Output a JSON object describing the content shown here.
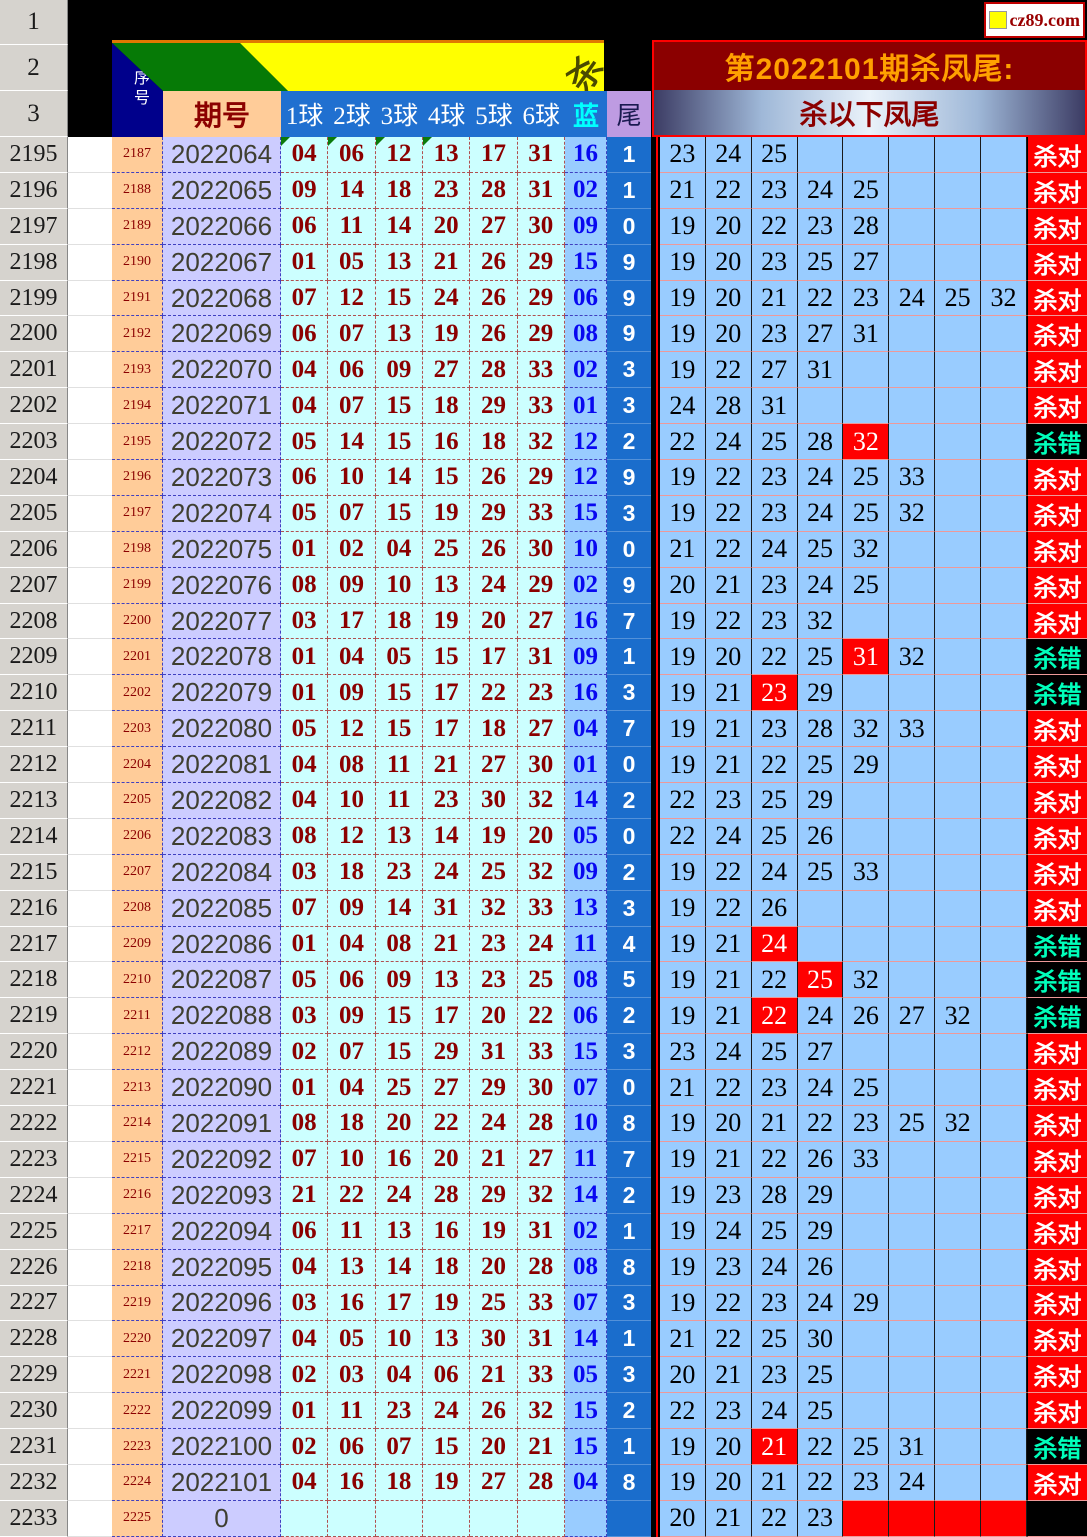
{
  "logo": {
    "text": "cz89.com"
  },
  "gutter_rows": [
    "1",
    "2",
    "3"
  ],
  "headers": {
    "serial": "序号",
    "period": "期号",
    "balls": [
      "1球",
      "2球",
      "3球",
      "4球",
      "5球",
      "6球"
    ],
    "blue": "蓝",
    "tail": "尾",
    "banner_glyph": "杀",
    "right_title": "第2022101期杀凤尾:",
    "right_subtitle": "杀以下凤尾"
  },
  "labels": {
    "correct": "杀对",
    "wrong": "杀错"
  },
  "colors": {
    "kill_highlight": "#FF0000",
    "correct_bg": "#FF0000",
    "wrong_bg": "#000000",
    "wrong_text": "#00FFBB",
    "panel_title_bg": "#8B0000",
    "panel_title_text": "#FFA000"
  },
  "rows": [
    {
      "gutter": "2195",
      "serial": "2187",
      "period": "2022064",
      "balls": [
        "04",
        "06",
        "12",
        "13",
        "17",
        "31"
      ],
      "blue": "16",
      "tail": "1",
      "kills": [
        "23",
        "24",
        "25"
      ],
      "red_kills": [],
      "result": "correct",
      "green_corners": [
        0,
        1,
        2,
        3
      ]
    },
    {
      "gutter": "2196",
      "serial": "2188",
      "period": "2022065",
      "balls": [
        "09",
        "14",
        "18",
        "23",
        "28",
        "31"
      ],
      "blue": "02",
      "tail": "1",
      "kills": [
        "21",
        "22",
        "23",
        "24",
        "25"
      ],
      "red_kills": [],
      "result": "correct"
    },
    {
      "gutter": "2197",
      "serial": "2189",
      "period": "2022066",
      "balls": [
        "06",
        "11",
        "14",
        "20",
        "27",
        "30"
      ],
      "blue": "09",
      "tail": "0",
      "kills": [
        "19",
        "20",
        "22",
        "23",
        "28"
      ],
      "red_kills": [],
      "result": "correct"
    },
    {
      "gutter": "2198",
      "serial": "2190",
      "period": "2022067",
      "balls": [
        "01",
        "05",
        "13",
        "21",
        "26",
        "29"
      ],
      "blue": "15",
      "tail": "9",
      "kills": [
        "19",
        "20",
        "23",
        "25",
        "27"
      ],
      "red_kills": [],
      "result": "correct"
    },
    {
      "gutter": "2199",
      "serial": "2191",
      "period": "2022068",
      "balls": [
        "07",
        "12",
        "15",
        "24",
        "26",
        "29"
      ],
      "blue": "06",
      "tail": "9",
      "kills": [
        "19",
        "20",
        "21",
        "22",
        "23",
        "24",
        "25",
        "32"
      ],
      "red_kills": [],
      "result": "correct"
    },
    {
      "gutter": "2200",
      "serial": "2192",
      "period": "2022069",
      "balls": [
        "06",
        "07",
        "13",
        "19",
        "26",
        "29"
      ],
      "blue": "08",
      "tail": "9",
      "kills": [
        "19",
        "20",
        "23",
        "27",
        "31"
      ],
      "red_kills": [],
      "result": "correct"
    },
    {
      "gutter": "2201",
      "serial": "2193",
      "period": "2022070",
      "balls": [
        "04",
        "06",
        "09",
        "27",
        "28",
        "33"
      ],
      "blue": "02",
      "tail": "3",
      "kills": [
        "19",
        "22",
        "27",
        "31"
      ],
      "red_kills": [],
      "result": "correct"
    },
    {
      "gutter": "2202",
      "serial": "2194",
      "period": "2022071",
      "balls": [
        "04",
        "07",
        "15",
        "18",
        "29",
        "33"
      ],
      "blue": "01",
      "tail": "3",
      "kills": [
        "24",
        "28",
        "31"
      ],
      "red_kills": [],
      "result": "correct"
    },
    {
      "gutter": "2203",
      "serial": "2195",
      "period": "2022072",
      "balls": [
        "05",
        "14",
        "15",
        "16",
        "18",
        "32"
      ],
      "blue": "12",
      "tail": "2",
      "kills": [
        "22",
        "24",
        "25",
        "28",
        "32"
      ],
      "red_kills": [
        4
      ],
      "result": "wrong"
    },
    {
      "gutter": "2204",
      "serial": "2196",
      "period": "2022073",
      "balls": [
        "06",
        "10",
        "14",
        "15",
        "26",
        "29"
      ],
      "blue": "12",
      "tail": "9",
      "kills": [
        "19",
        "22",
        "23",
        "24",
        "25",
        "33"
      ],
      "red_kills": [],
      "result": "correct"
    },
    {
      "gutter": "2205",
      "serial": "2197",
      "period": "2022074",
      "balls": [
        "05",
        "07",
        "15",
        "19",
        "29",
        "33"
      ],
      "blue": "15",
      "tail": "3",
      "kills": [
        "19",
        "22",
        "23",
        "24",
        "25",
        "32"
      ],
      "red_kills": [],
      "result": "correct"
    },
    {
      "gutter": "2206",
      "serial": "2198",
      "period": "2022075",
      "balls": [
        "01",
        "02",
        "04",
        "25",
        "26",
        "30"
      ],
      "blue": "10",
      "tail": "0",
      "kills": [
        "21",
        "22",
        "24",
        "25",
        "32"
      ],
      "red_kills": [],
      "result": "correct"
    },
    {
      "gutter": "2207",
      "serial": "2199",
      "period": "2022076",
      "balls": [
        "08",
        "09",
        "10",
        "13",
        "24",
        "29"
      ],
      "blue": "02",
      "tail": "9",
      "kills": [
        "20",
        "21",
        "23",
        "24",
        "25"
      ],
      "red_kills": [],
      "result": "correct"
    },
    {
      "gutter": "2208",
      "serial": "2200",
      "period": "2022077",
      "balls": [
        "03",
        "17",
        "18",
        "19",
        "20",
        "27"
      ],
      "blue": "16",
      "tail": "7",
      "kills": [
        "19",
        "22",
        "23",
        "32"
      ],
      "red_kills": [],
      "result": "correct"
    },
    {
      "gutter": "2209",
      "serial": "2201",
      "period": "2022078",
      "balls": [
        "01",
        "04",
        "05",
        "15",
        "17",
        "31"
      ],
      "blue": "09",
      "tail": "1",
      "kills": [
        "19",
        "20",
        "22",
        "25",
        "31",
        "32"
      ],
      "red_kills": [
        4
      ],
      "result": "wrong"
    },
    {
      "gutter": "2210",
      "serial": "2202",
      "period": "2022079",
      "balls": [
        "01",
        "09",
        "15",
        "17",
        "22",
        "23"
      ],
      "blue": "16",
      "tail": "3",
      "kills": [
        "19",
        "21",
        "23",
        "29"
      ],
      "red_kills": [
        2
      ],
      "result": "wrong"
    },
    {
      "gutter": "2211",
      "serial": "2203",
      "period": "2022080",
      "balls": [
        "05",
        "12",
        "15",
        "17",
        "18",
        "27"
      ],
      "blue": "04",
      "tail": "7",
      "kills": [
        "19",
        "21",
        "23",
        "28",
        "32",
        "33"
      ],
      "red_kills": [],
      "result": "correct"
    },
    {
      "gutter": "2212",
      "serial": "2204",
      "period": "2022081",
      "balls": [
        "04",
        "08",
        "11",
        "21",
        "27",
        "30"
      ],
      "blue": "01",
      "tail": "0",
      "kills": [
        "19",
        "21",
        "22",
        "25",
        "29"
      ],
      "red_kills": [],
      "result": "correct"
    },
    {
      "gutter": "2213",
      "serial": "2205",
      "period": "2022082",
      "balls": [
        "04",
        "10",
        "11",
        "23",
        "30",
        "32"
      ],
      "blue": "14",
      "tail": "2",
      "kills": [
        "22",
        "23",
        "25",
        "29"
      ],
      "red_kills": [],
      "result": "correct"
    },
    {
      "gutter": "2214",
      "serial": "2206",
      "period": "2022083",
      "balls": [
        "08",
        "12",
        "13",
        "14",
        "19",
        "20"
      ],
      "blue": "05",
      "tail": "0",
      "kills": [
        "22",
        "24",
        "25",
        "26"
      ],
      "red_kills": [],
      "result": "correct"
    },
    {
      "gutter": "2215",
      "serial": "2207",
      "period": "2022084",
      "balls": [
        "03",
        "18",
        "23",
        "24",
        "25",
        "32"
      ],
      "blue": "09",
      "tail": "2",
      "kills": [
        "19",
        "22",
        "24",
        "25",
        "33"
      ],
      "red_kills": [],
      "result": "correct"
    },
    {
      "gutter": "2216",
      "serial": "2208",
      "period": "2022085",
      "balls": [
        "07",
        "09",
        "14",
        "31",
        "32",
        "33"
      ],
      "blue": "13",
      "tail": "3",
      "kills": [
        "19",
        "22",
        "26"
      ],
      "red_kills": [],
      "result": "correct"
    },
    {
      "gutter": "2217",
      "serial": "2209",
      "period": "2022086",
      "balls": [
        "01",
        "04",
        "08",
        "21",
        "23",
        "24"
      ],
      "blue": "11",
      "tail": "4",
      "kills": [
        "19",
        "21",
        "24"
      ],
      "red_kills": [
        2
      ],
      "result": "wrong"
    },
    {
      "gutter": "2218",
      "serial": "2210",
      "period": "2022087",
      "balls": [
        "05",
        "06",
        "09",
        "13",
        "23",
        "25"
      ],
      "blue": "08",
      "tail": "5",
      "kills": [
        "19",
        "21",
        "22",
        "25",
        "32"
      ],
      "red_kills": [
        3
      ],
      "result": "wrong"
    },
    {
      "gutter": "2219",
      "serial": "2211",
      "period": "2022088",
      "balls": [
        "03",
        "09",
        "15",
        "17",
        "20",
        "22"
      ],
      "blue": "06",
      "tail": "2",
      "kills": [
        "19",
        "21",
        "22",
        "24",
        "26",
        "27",
        "32"
      ],
      "red_kills": [
        2
      ],
      "result": "wrong"
    },
    {
      "gutter": "2220",
      "serial": "2212",
      "period": "2022089",
      "balls": [
        "02",
        "07",
        "15",
        "29",
        "31",
        "33"
      ],
      "blue": "15",
      "tail": "3",
      "kills": [
        "23",
        "24",
        "25",
        "27"
      ],
      "red_kills": [],
      "result": "correct"
    },
    {
      "gutter": "2221",
      "serial": "2213",
      "period": "2022090",
      "balls": [
        "01",
        "04",
        "25",
        "27",
        "29",
        "30"
      ],
      "blue": "07",
      "tail": "0",
      "kills": [
        "21",
        "22",
        "23",
        "24",
        "25"
      ],
      "red_kills": [],
      "result": "correct"
    },
    {
      "gutter": "2222",
      "serial": "2214",
      "period": "2022091",
      "balls": [
        "08",
        "18",
        "20",
        "22",
        "24",
        "28"
      ],
      "blue": "10",
      "tail": "8",
      "kills": [
        "19",
        "20",
        "21",
        "22",
        "23",
        "25",
        "32"
      ],
      "red_kills": [],
      "result": "correct"
    },
    {
      "gutter": "2223",
      "serial": "2215",
      "period": "2022092",
      "balls": [
        "07",
        "10",
        "16",
        "20",
        "21",
        "27"
      ],
      "blue": "11",
      "tail": "7",
      "kills": [
        "19",
        "21",
        "22",
        "26",
        "33"
      ],
      "red_kills": [],
      "result": "correct"
    },
    {
      "gutter": "2224",
      "serial": "2216",
      "period": "2022093",
      "balls": [
        "21",
        "22",
        "24",
        "28",
        "29",
        "32"
      ],
      "blue": "14",
      "tail": "2",
      "kills": [
        "19",
        "23",
        "28",
        "29"
      ],
      "red_kills": [],
      "result": "correct"
    },
    {
      "gutter": "2225",
      "serial": "2217",
      "period": "2022094",
      "balls": [
        "06",
        "11",
        "13",
        "16",
        "19",
        "31"
      ],
      "blue": "02",
      "tail": "1",
      "kills": [
        "19",
        "24",
        "25",
        "29"
      ],
      "red_kills": [],
      "result": "correct"
    },
    {
      "gutter": "2226",
      "serial": "2218",
      "period": "2022095",
      "balls": [
        "04",
        "13",
        "14",
        "18",
        "20",
        "28"
      ],
      "blue": "08",
      "tail": "8",
      "kills": [
        "19",
        "23",
        "24",
        "26"
      ],
      "red_kills": [],
      "result": "correct"
    },
    {
      "gutter": "2227",
      "serial": "2219",
      "period": "2022096",
      "balls": [
        "03",
        "16",
        "17",
        "19",
        "25",
        "33"
      ],
      "blue": "07",
      "tail": "3",
      "kills": [
        "19",
        "22",
        "23",
        "24",
        "29"
      ],
      "red_kills": [],
      "result": "correct"
    },
    {
      "gutter": "2228",
      "serial": "2220",
      "period": "2022097",
      "balls": [
        "04",
        "05",
        "10",
        "13",
        "30",
        "31"
      ],
      "blue": "14",
      "tail": "1",
      "kills": [
        "21",
        "22",
        "25",
        "30"
      ],
      "red_kills": [],
      "result": "correct"
    },
    {
      "gutter": "2229",
      "serial": "2221",
      "period": "2022098",
      "balls": [
        "02",
        "03",
        "04",
        "06",
        "21",
        "33"
      ],
      "blue": "05",
      "tail": "3",
      "kills": [
        "20",
        "21",
        "23",
        "25"
      ],
      "red_kills": [],
      "result": "correct"
    },
    {
      "gutter": "2230",
      "serial": "2222",
      "period": "2022099",
      "balls": [
        "01",
        "11",
        "23",
        "24",
        "26",
        "32"
      ],
      "blue": "15",
      "tail": "2",
      "kills": [
        "22",
        "23",
        "24",
        "25"
      ],
      "red_kills": [],
      "result": "correct"
    },
    {
      "gutter": "2231",
      "serial": "2223",
      "period": "2022100",
      "balls": [
        "02",
        "06",
        "07",
        "15",
        "20",
        "21"
      ],
      "blue": "15",
      "tail": "1",
      "kills": [
        "19",
        "20",
        "21",
        "22",
        "25",
        "31"
      ],
      "red_kills": [
        2
      ],
      "result": "wrong"
    },
    {
      "gutter": "2232",
      "serial": "2224",
      "period": "2022101",
      "balls": [
        "04",
        "16",
        "18",
        "19",
        "27",
        "28"
      ],
      "blue": "04",
      "tail": "8",
      "kills": [
        "19",
        "20",
        "21",
        "22",
        "23",
        "24"
      ],
      "red_kills": [],
      "result": "correct"
    },
    {
      "gutter": "2233",
      "serial": "2225",
      "period": "0",
      "balls": [
        "",
        "",
        "",
        "",
        "",
        ""
      ],
      "blue": "",
      "tail": "",
      "kills": [
        "20",
        "21",
        "22",
        "23"
      ],
      "red_kills": [],
      "red_fill_from": 4,
      "result": "none"
    }
  ]
}
